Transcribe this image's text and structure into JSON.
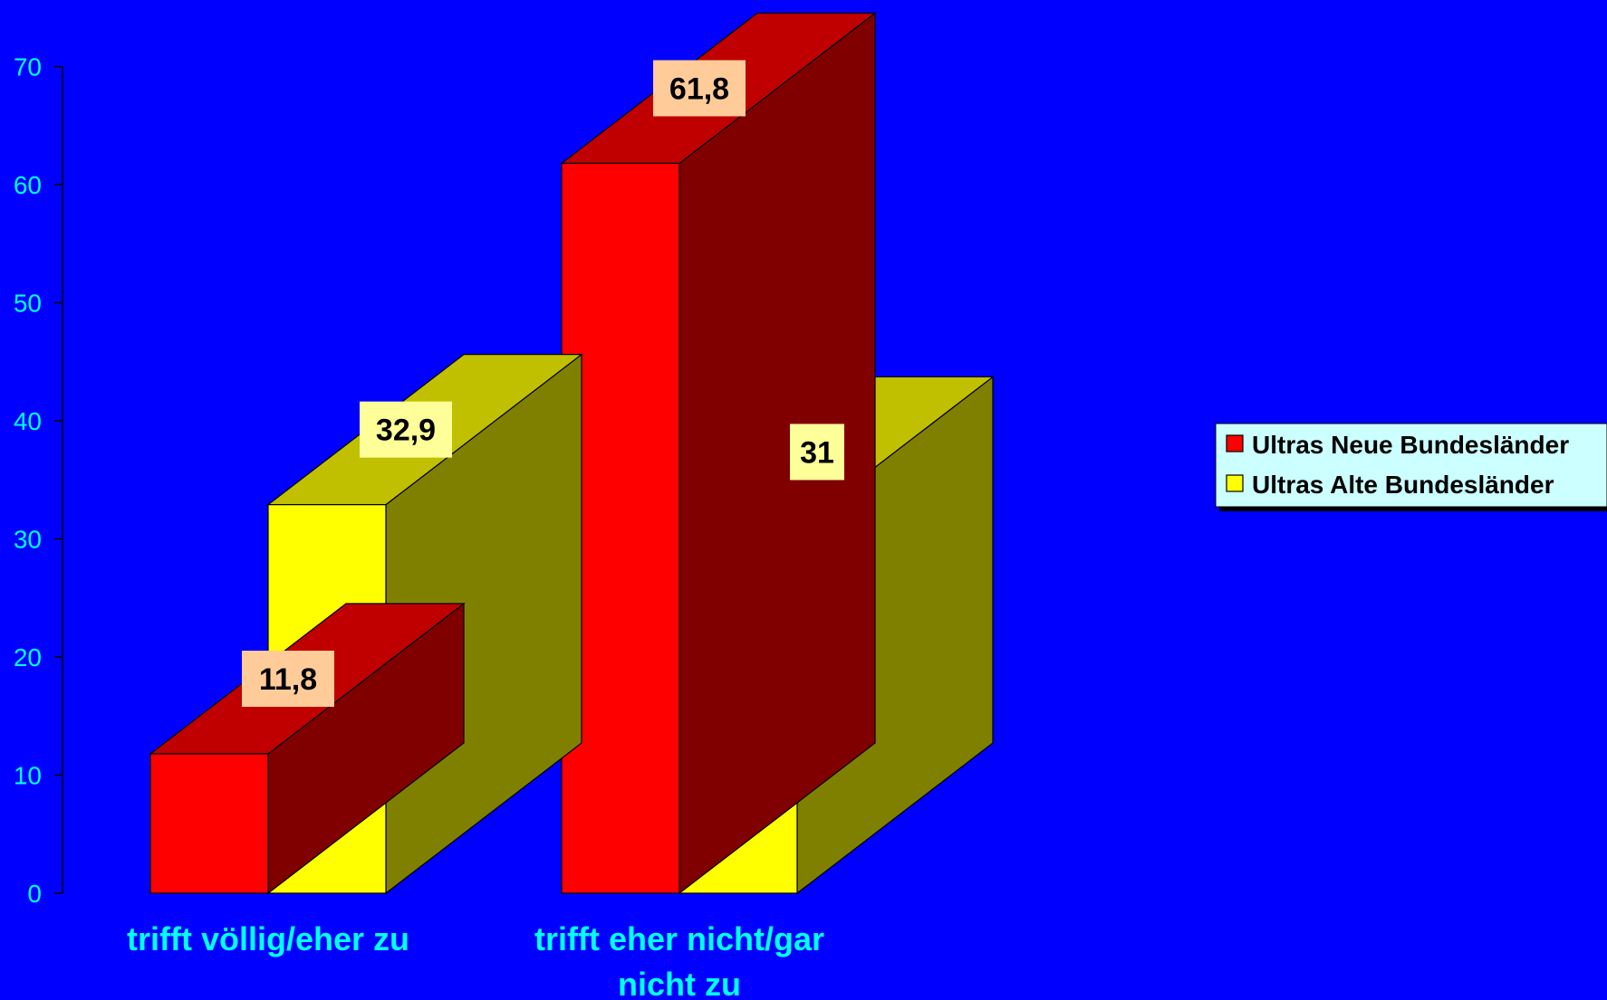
{
  "chart_data": {
    "type": "bar",
    "categories": [
      "trifft völlig/eher zu",
      "trifft eher nicht/gar nicht zu"
    ],
    "series": [
      {
        "name": "Ultras Neue Bundesländer",
        "values": [
          11.8,
          61.8
        ],
        "labels": [
          "11,8",
          "61,8"
        ],
        "color": "#ff0000",
        "top_color": "#c00000",
        "side_color": "#800000",
        "label_bg": "#ffcc99"
      },
      {
        "name": "Ultras Alte Bundesländer",
        "values": [
          32.9,
          31
        ],
        "labels": [
          "32,9",
          "31"
        ],
        "color": "#ffff00",
        "top_color": "#c0c000",
        "side_color": "#808000",
        "label_bg": "#ffff99"
      }
    ],
    "y_ticks": [
      "0",
      "10",
      "20",
      "30",
      "40",
      "50",
      "60",
      "70"
    ],
    "ylim": [
      0,
      70
    ],
    "legend_position": "right",
    "legend_bg": "#ccffff",
    "background": "#0000ff",
    "text_color": "#00ffff"
  }
}
